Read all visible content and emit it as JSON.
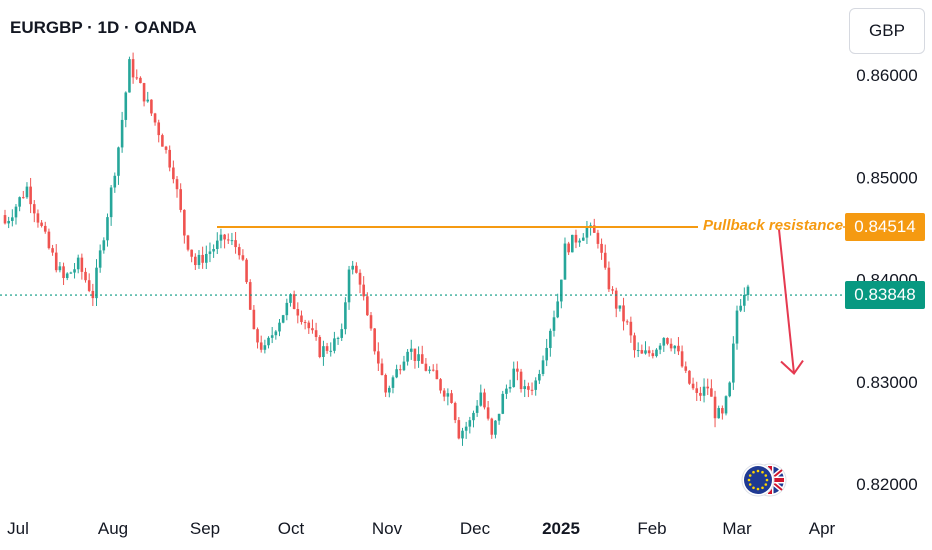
{
  "header": {
    "title": "EURGBP · 1D · OANDA",
    "currency": "GBP"
  },
  "colors": {
    "up": "#26a69a",
    "down": "#ef5350",
    "resistance": "#f59a11",
    "current_price": "#089981",
    "arrow": "#e53950",
    "axis_text": "#131722"
  },
  "annotation": {
    "label": "Pullback resistance",
    "value": "0.84514"
  },
  "current_price": {
    "label": "0.83848"
  },
  "icons": {
    "pair_icon": "eu-gb-flags-icon"
  },
  "chart_data": {
    "type": "candlestick",
    "title": "EURGBP · 1D · OANDA",
    "ylabel": "GBP",
    "ylim": [
      0.8185,
      0.8635
    ],
    "x_ticks": [
      "Jul",
      "Aug",
      "Sep",
      "Oct",
      "Nov",
      "Dec",
      "2025",
      "Feb",
      "Mar",
      "Apr"
    ],
    "y_ticks": [
      "0.86000",
      "0.85000",
      "0.84000",
      "0.83000",
      "0.82000"
    ],
    "y_tick_values": [
      0.86,
      0.85,
      0.84,
      0.83,
      0.82
    ],
    "resistance_level": 0.84514,
    "current_price": 0.83848,
    "grid": false,
    "waypoints": [
      [
        0,
        0.8455
      ],
      [
        6,
        0.849
      ],
      [
        12,
        0.843
      ],
      [
        16,
        0.84
      ],
      [
        20,
        0.8415
      ],
      [
        24,
        0.8385
      ],
      [
        28,
        0.8465
      ],
      [
        31,
        0.853
      ],
      [
        34,
        0.861
      ],
      [
        38,
        0.858
      ],
      [
        42,
        0.8545
      ],
      [
        46,
        0.8505
      ],
      [
        49,
        0.8445
      ],
      [
        52,
        0.8415
      ],
      [
        55,
        0.8425
      ],
      [
        60,
        0.844
      ],
      [
        64,
        0.843
      ],
      [
        66,
        0.8395
      ],
      [
        68,
        0.8345
      ],
      [
        71,
        0.833
      ],
      [
        74,
        0.8355
      ],
      [
        78,
        0.838
      ],
      [
        82,
        0.836
      ],
      [
        86,
        0.833
      ],
      [
        89,
        0.8335
      ],
      [
        92,
        0.8345
      ],
      [
        94,
        0.8415
      ],
      [
        97,
        0.84
      ],
      [
        99,
        0.836
      ],
      [
        102,
        0.832
      ],
      [
        104,
        0.829
      ],
      [
        107,
        0.831
      ],
      [
        110,
        0.8335
      ],
      [
        113,
        0.832
      ],
      [
        116,
        0.831
      ],
      [
        119,
        0.8295
      ],
      [
        122,
        0.8285
      ],
      [
        124,
        0.825
      ],
      [
        127,
        0.826
      ],
      [
        130,
        0.829
      ],
      [
        133,
        0.8245
      ],
      [
        136,
        0.8285
      ],
      [
        139,
        0.831
      ],
      [
        142,
        0.829
      ],
      [
        145,
        0.83
      ],
      [
        148,
        0.834
      ],
      [
        151,
        0.838
      ],
      [
        153,
        0.843
      ],
      [
        156,
        0.844
      ],
      [
        159,
        0.845
      ],
      [
        162,
        0.844
      ],
      [
        164,
        0.8405
      ],
      [
        167,
        0.8375
      ],
      [
        170,
        0.8355
      ],
      [
        172,
        0.833
      ],
      [
        174,
        0.8325
      ],
      [
        177,
        0.833
      ],
      [
        180,
        0.8345
      ],
      [
        183,
        0.8335
      ],
      [
        186,
        0.8305
      ],
      [
        189,
        0.8285
      ],
      [
        192,
        0.8295
      ],
      [
        194,
        0.827
      ],
      [
        196,
        0.8265
      ],
      [
        198,
        0.8295
      ],
      [
        200,
        0.837
      ],
      [
        203,
        0.84
      ]
    ],
    "projection": {
      "from_value": 0.8451,
      "to_value": 0.831
    }
  }
}
